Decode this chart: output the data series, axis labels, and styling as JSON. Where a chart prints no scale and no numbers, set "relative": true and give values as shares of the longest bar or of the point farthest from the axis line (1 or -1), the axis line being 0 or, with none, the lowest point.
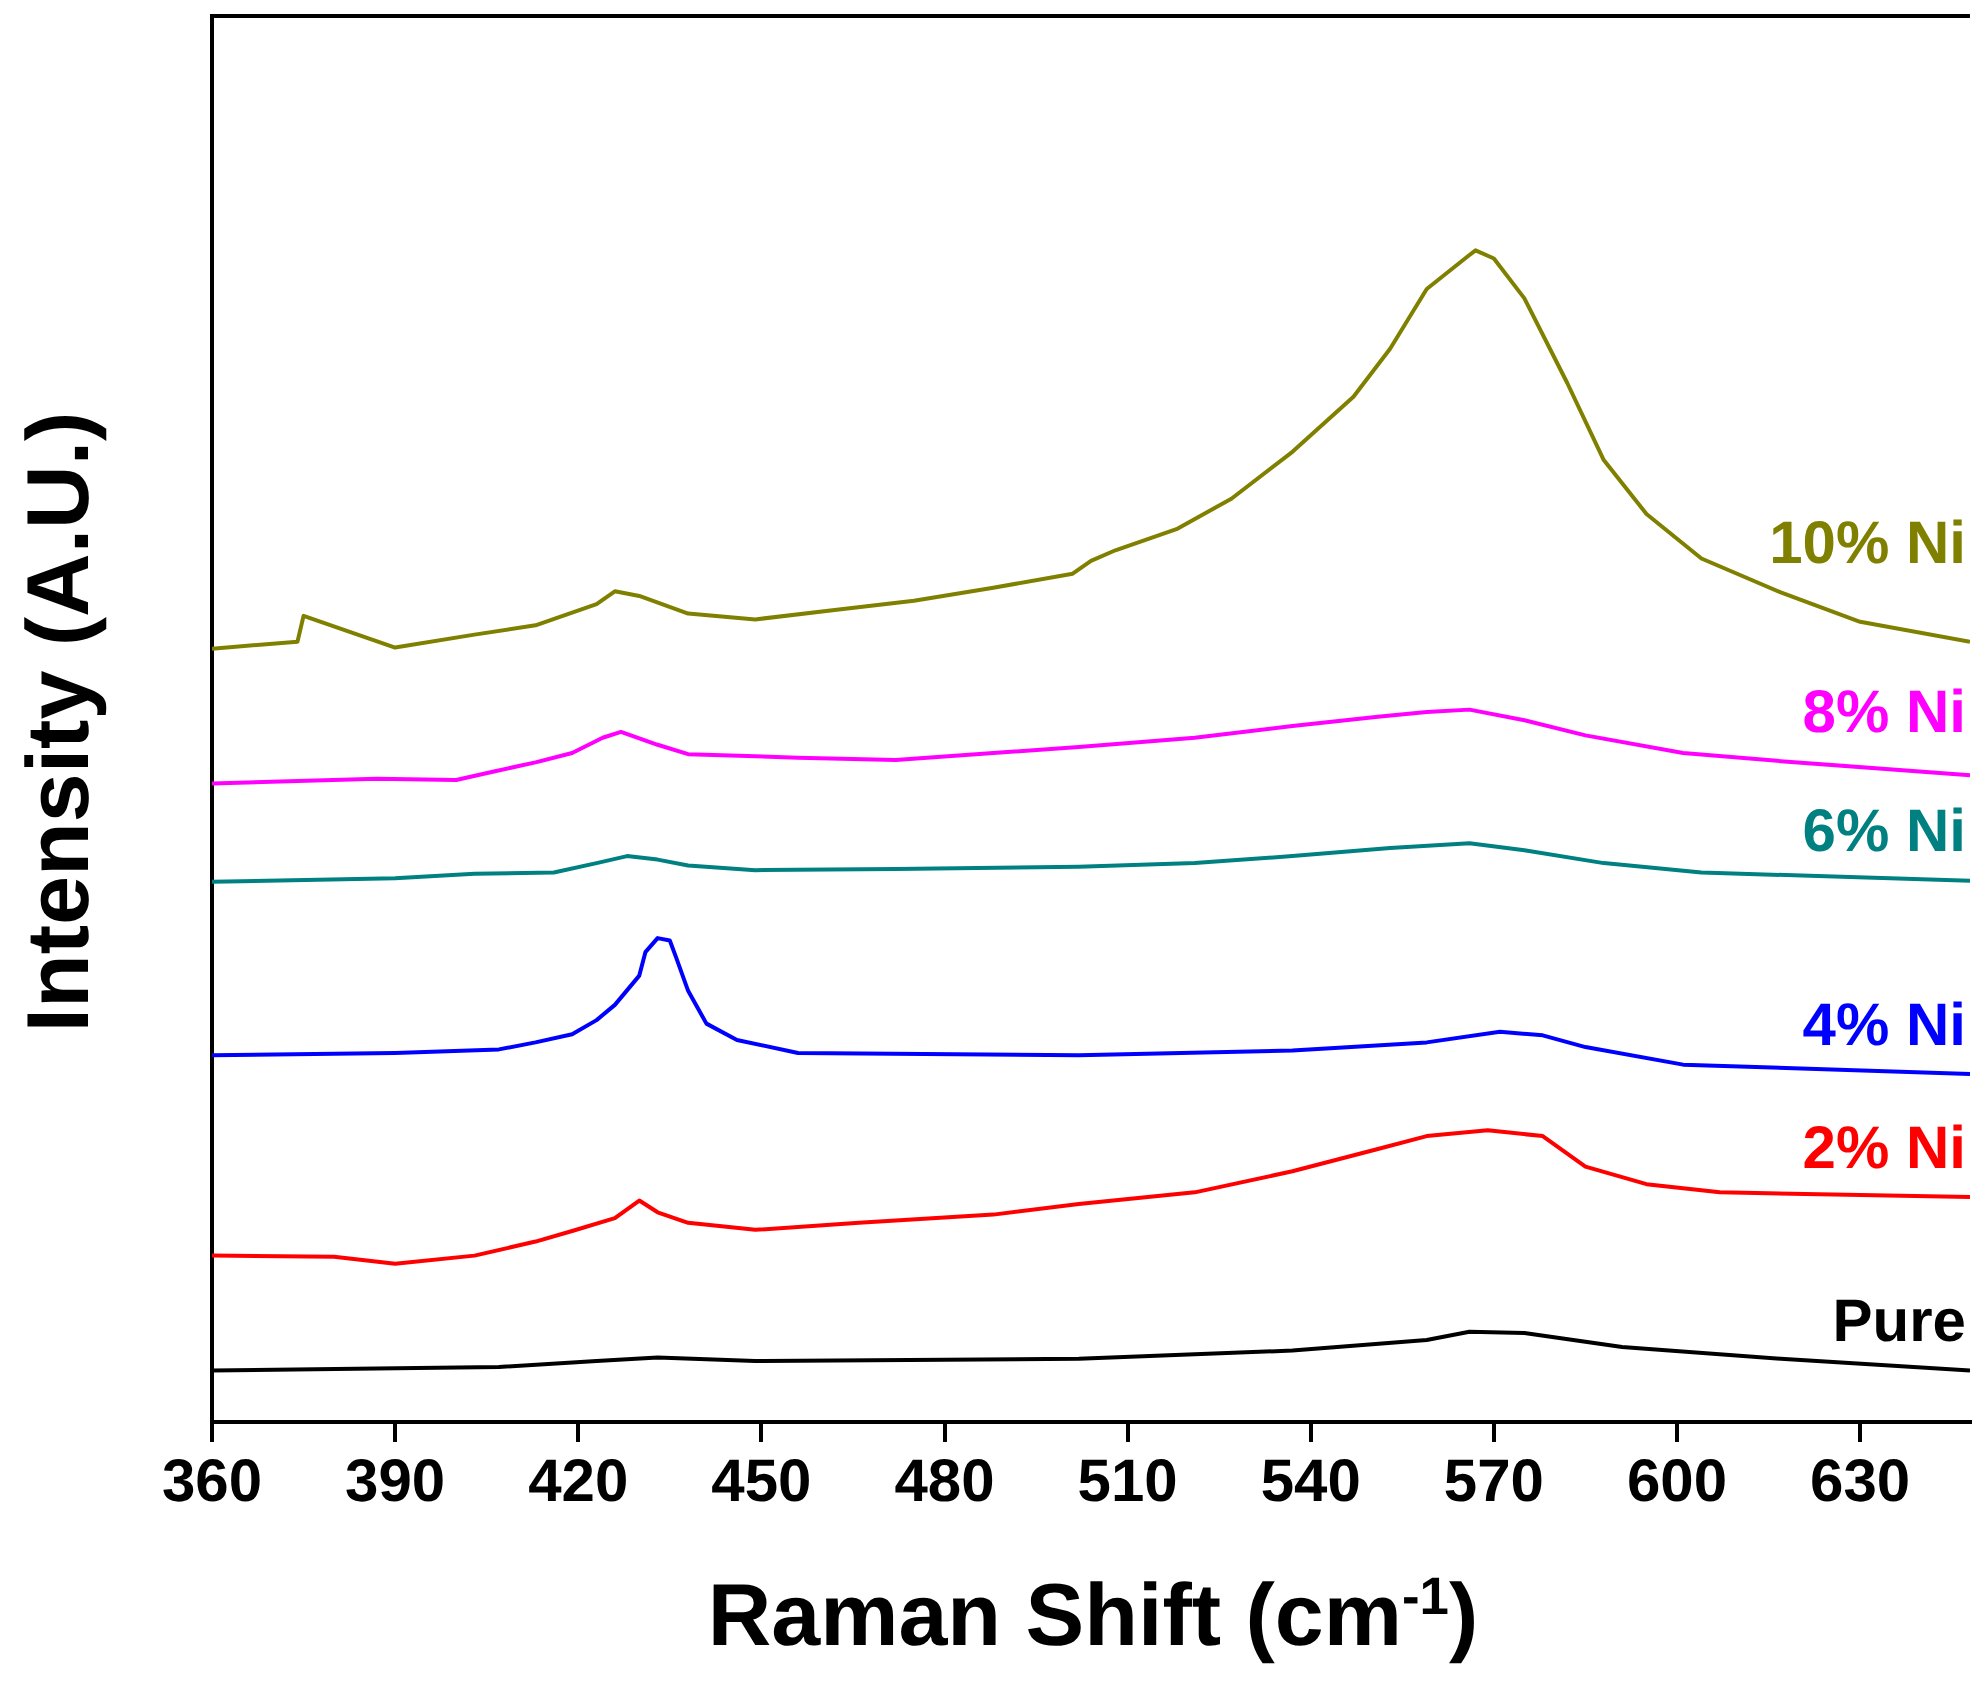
{
  "chart_data": {
    "type": "line",
    "xlabel": "Raman Shift (cm$^{-1}$)",
    "ylabel": "Intensity (A.U.)",
    "relative": true,
    "xlim": [
      360,
      648
    ],
    "xticks": [
      360,
      390,
      420,
      450,
      480,
      510,
      540,
      570,
      600,
      630
    ],
    "legend": false,
    "grid": false,
    "marker": "none",
    "series": [
      {
        "name": "10% Ni",
        "color": "#808000",
        "x": [
          360,
          374,
          375,
          390,
          403,
          413,
          423,
          426,
          430,
          438,
          449,
          462,
          475,
          488,
          501,
          504,
          508,
          518,
          527,
          537,
          547,
          553,
          559,
          566,
          567,
          570,
          575,
          582,
          588,
          595,
          604,
          617,
          630,
          648
        ],
        "values": [
          0.66,
          0.666,
          0.688,
          0.661,
          0.672,
          0.68,
          0.698,
          0.709,
          0.705,
          0.69,
          0.685,
          0.693,
          0.701,
          0.712,
          0.724,
          0.735,
          0.744,
          0.762,
          0.788,
          0.828,
          0.875,
          0.916,
          0.967,
          0.996,
          1.0,
          0.993,
          0.959,
          0.887,
          0.821,
          0.775,
          0.737,
          0.708,
          0.683,
          0.666
        ]
      },
      {
        "name": "8% Ni",
        "color": "#ff00ff",
        "x": [
          360,
          387,
          400,
          406,
          413,
          419,
          424,
          427,
          433,
          438,
          456,
          472,
          488,
          502,
          521,
          537,
          551,
          559,
          566,
          575,
          585,
          601,
          617,
          648
        ],
        "values": [
          0.545,
          0.549,
          0.548,
          0.555,
          0.563,
          0.571,
          0.584,
          0.589,
          0.578,
          0.57,
          0.567,
          0.565,
          0.571,
          0.576,
          0.584,
          0.594,
          0.602,
          0.606,
          0.608,
          0.599,
          0.586,
          0.571,
          0.564,
          0.552
        ]
      },
      {
        "name": "6% Ni",
        "color": "#008080",
        "x": [
          360,
          390,
          403,
          416,
          423,
          428,
          433,
          438,
          449,
          472,
          502,
          521,
          537,
          553,
          566,
          575,
          588,
          604,
          648
        ],
        "values": [
          0.461,
          0.464,
          0.468,
          0.469,
          0.477,
          0.483,
          0.48,
          0.475,
          0.471,
          0.472,
          0.474,
          0.477,
          0.483,
          0.49,
          0.494,
          0.488,
          0.477,
          0.469,
          0.462
        ]
      },
      {
        "name": "4% Ni",
        "color": "#0000ff",
        "x": [
          360,
          390,
          407,
          413,
          419,
          423,
          426,
          430,
          431,
          433,
          435,
          436,
          438,
          441,
          446,
          456,
          502,
          537,
          559,
          571,
          578,
          585,
          601,
          648
        ],
        "values": [
          0.313,
          0.315,
          0.318,
          0.324,
          0.331,
          0.343,
          0.356,
          0.381,
          0.401,
          0.413,
          0.411,
          0.397,
          0.368,
          0.34,
          0.326,
          0.315,
          0.313,
          0.317,
          0.324,
          0.333,
          0.33,
          0.32,
          0.305,
          0.297
        ]
      },
      {
        "name": "2% Ni",
        "color": "#ff0000",
        "x": [
          360,
          380,
          390,
          403,
          413,
          419,
          426,
          430,
          433,
          438,
          449,
          466,
          488,
          502,
          521,
          537,
          551,
          559,
          569,
          578,
          585,
          595,
          607,
          648
        ],
        "values": [
          0.142,
          0.141,
          0.135,
          0.142,
          0.154,
          0.163,
          0.174,
          0.189,
          0.179,
          0.17,
          0.164,
          0.17,
          0.177,
          0.186,
          0.196,
          0.214,
          0.233,
          0.244,
          0.249,
          0.244,
          0.218,
          0.203,
          0.196,
          0.192
        ]
      },
      {
        "name": "Pure",
        "color": "#000000",
        "x": [
          360,
          407,
          423,
          433,
          449,
          502,
          537,
          559,
          566,
          575,
          591,
          617,
          648
        ],
        "values": [
          0.044,
          0.047,
          0.052,
          0.055,
          0.052,
          0.054,
          0.061,
          0.07,
          0.077,
          0.076,
          0.064,
          0.054,
          0.044
        ]
      }
    ]
  }
}
